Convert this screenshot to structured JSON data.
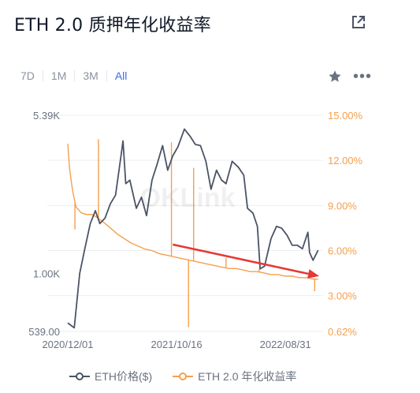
{
  "title": "ETH 2.0 质押年化收益率",
  "icons": {
    "share": "external-link-icon",
    "star": "star-icon",
    "more": "more-dots-icon"
  },
  "ranges": [
    {
      "label": "7D",
      "active": false
    },
    {
      "label": "1M",
      "active": false
    },
    {
      "label": "3M",
      "active": false
    },
    {
      "label": "All",
      "active": true
    }
  ],
  "watermark": "OKLink",
  "legend": {
    "eth_price": "ETH价格($)",
    "apr": "ETH 2.0 年化收益率"
  },
  "colors": {
    "price": "#4b5366",
    "apr": "#f5a04d",
    "left_axis_text": "#6b7280",
    "right_axis_text": "#f5a04d",
    "arrow": "#e53935",
    "active_tab": "#3b6de0"
  },
  "chart_data": {
    "type": "line",
    "title": "",
    "x_ticks": [
      "2020/12/01",
      "2021/10/16",
      "2022/08/31"
    ],
    "left_axis": {
      "ticks": [
        "5.39K",
        "1.00K",
        "539.00"
      ],
      "scale": "log",
      "range": [
        539,
        5390
      ]
    },
    "right_axis": {
      "ticks": [
        "15.00%",
        "12.00%",
        "9.00%",
        "6.00%",
        "3.00%",
        "0.62%"
      ],
      "range": [
        0.62,
        15
      ]
    },
    "series": [
      {
        "name": "ETH价格($)",
        "axis": "left",
        "x": [
          "2020-12-01",
          "2020-12-20",
          "2021-01-05",
          "2021-01-20",
          "2021-02-05",
          "2021-02-20",
          "2021-03-05",
          "2021-03-20",
          "2021-04-05",
          "2021-04-20",
          "2021-05-05",
          "2021-05-12",
          "2021-05-20",
          "2021-06-01",
          "2021-06-20",
          "2021-07-05",
          "2021-07-20",
          "2021-08-05",
          "2021-08-20",
          "2021-09-05",
          "2021-09-20",
          "2021-10-05",
          "2021-10-20",
          "2021-11-08",
          "2021-11-25",
          "2021-12-10",
          "2021-12-25",
          "2022-01-10",
          "2022-01-25",
          "2022-02-10",
          "2022-02-25",
          "2022-03-10",
          "2022-03-28",
          "2022-04-15",
          "2022-05-01",
          "2022-05-12",
          "2022-05-28",
          "2022-06-10",
          "2022-06-18",
          "2022-07-01",
          "2022-07-20",
          "2022-08-05",
          "2022-08-20",
          "2022-09-05",
          "2022-09-20",
          "2022-10-05",
          "2022-10-20",
          "2022-11-05",
          "2022-11-10",
          "2022-11-20",
          "2022-12-05"
        ],
        "values": [
          590,
          560,
          1000,
          1300,
          1700,
          1950,
          1700,
          1800,
          2100,
          2300,
          3400,
          4100,
          2600,
          2700,
          2000,
          2250,
          1850,
          2700,
          3200,
          3900,
          3000,
          3500,
          3850,
          4650,
          4300,
          3950,
          3900,
          3300,
          2450,
          3000,
          2700,
          2600,
          3300,
          3100,
          2850,
          2000,
          1900,
          1650,
          1050,
          1080,
          1450,
          1650,
          1620,
          1500,
          1350,
          1350,
          1300,
          1550,
          1250,
          1150,
          1280
        ]
      },
      {
        "name": "ETH 2.0 年化收益率",
        "axis": "right",
        "x": [
          "2020-12-01",
          "2020-12-06",
          "2020-12-15",
          "2020-12-25",
          "2021-01-10",
          "2021-01-25",
          "2021-02-10",
          "2021-02-25",
          "2021-03-15",
          "2021-04-05",
          "2021-04-25",
          "2021-05-15",
          "2021-06-05",
          "2021-06-25",
          "2021-07-15",
          "2021-08-05",
          "2021-08-25",
          "2021-09-15",
          "2021-10-05",
          "2021-10-25",
          "2021-11-15",
          "2021-12-05",
          "2021-12-25",
          "2022-01-15",
          "2022-02-05",
          "2022-02-25",
          "2022-03-20",
          "2022-04-10",
          "2022-05-01",
          "2022-05-20",
          "2022-06-10",
          "2022-07-01",
          "2022-07-20",
          "2022-08-10",
          "2022-08-31",
          "2022-09-20",
          "2022-10-10",
          "2022-11-01",
          "2022-11-20",
          "2022-12-05"
        ],
        "values": [
          13.1,
          11.5,
          10.0,
          8.9,
          8.5,
          8.4,
          8.4,
          8.2,
          7.9,
          7.5,
          7.1,
          6.8,
          6.5,
          6.3,
          6.1,
          6.0,
          5.8,
          5.7,
          5.6,
          5.5,
          5.4,
          5.3,
          5.2,
          5.1,
          5.0,
          4.9,
          4.8,
          4.8,
          4.7,
          4.6,
          4.6,
          4.5,
          4.4,
          4.4,
          4.3,
          4.3,
          4.2,
          4.2,
          4.1,
          4.1
        ]
      }
    ],
    "apr_spikes": [
      {
        "x": "2020-12-22",
        "value": 7.4
      },
      {
        "x": "2021-03-01",
        "value": 13.4
      },
      {
        "x": "2021-10-01",
        "value": 13.2
      },
      {
        "x": "2021-11-20",
        "value": 0.9
      },
      {
        "x": "2021-12-05",
        "value": 11.5
      },
      {
        "x": "2022-03-10",
        "value": 5.5
      },
      {
        "x": "2022-06-15",
        "value": 4.8
      },
      {
        "x": "2022-11-25",
        "value": 3.3
      }
    ],
    "annotation": {
      "type": "arrow",
      "from": {
        "x": "2021-10-05",
        "value": 6.4
      },
      "to": {
        "x": "2022-12-08",
        "value": 4.3
      }
    },
    "grid": "horizontal",
    "legend_position": "bottom"
  }
}
